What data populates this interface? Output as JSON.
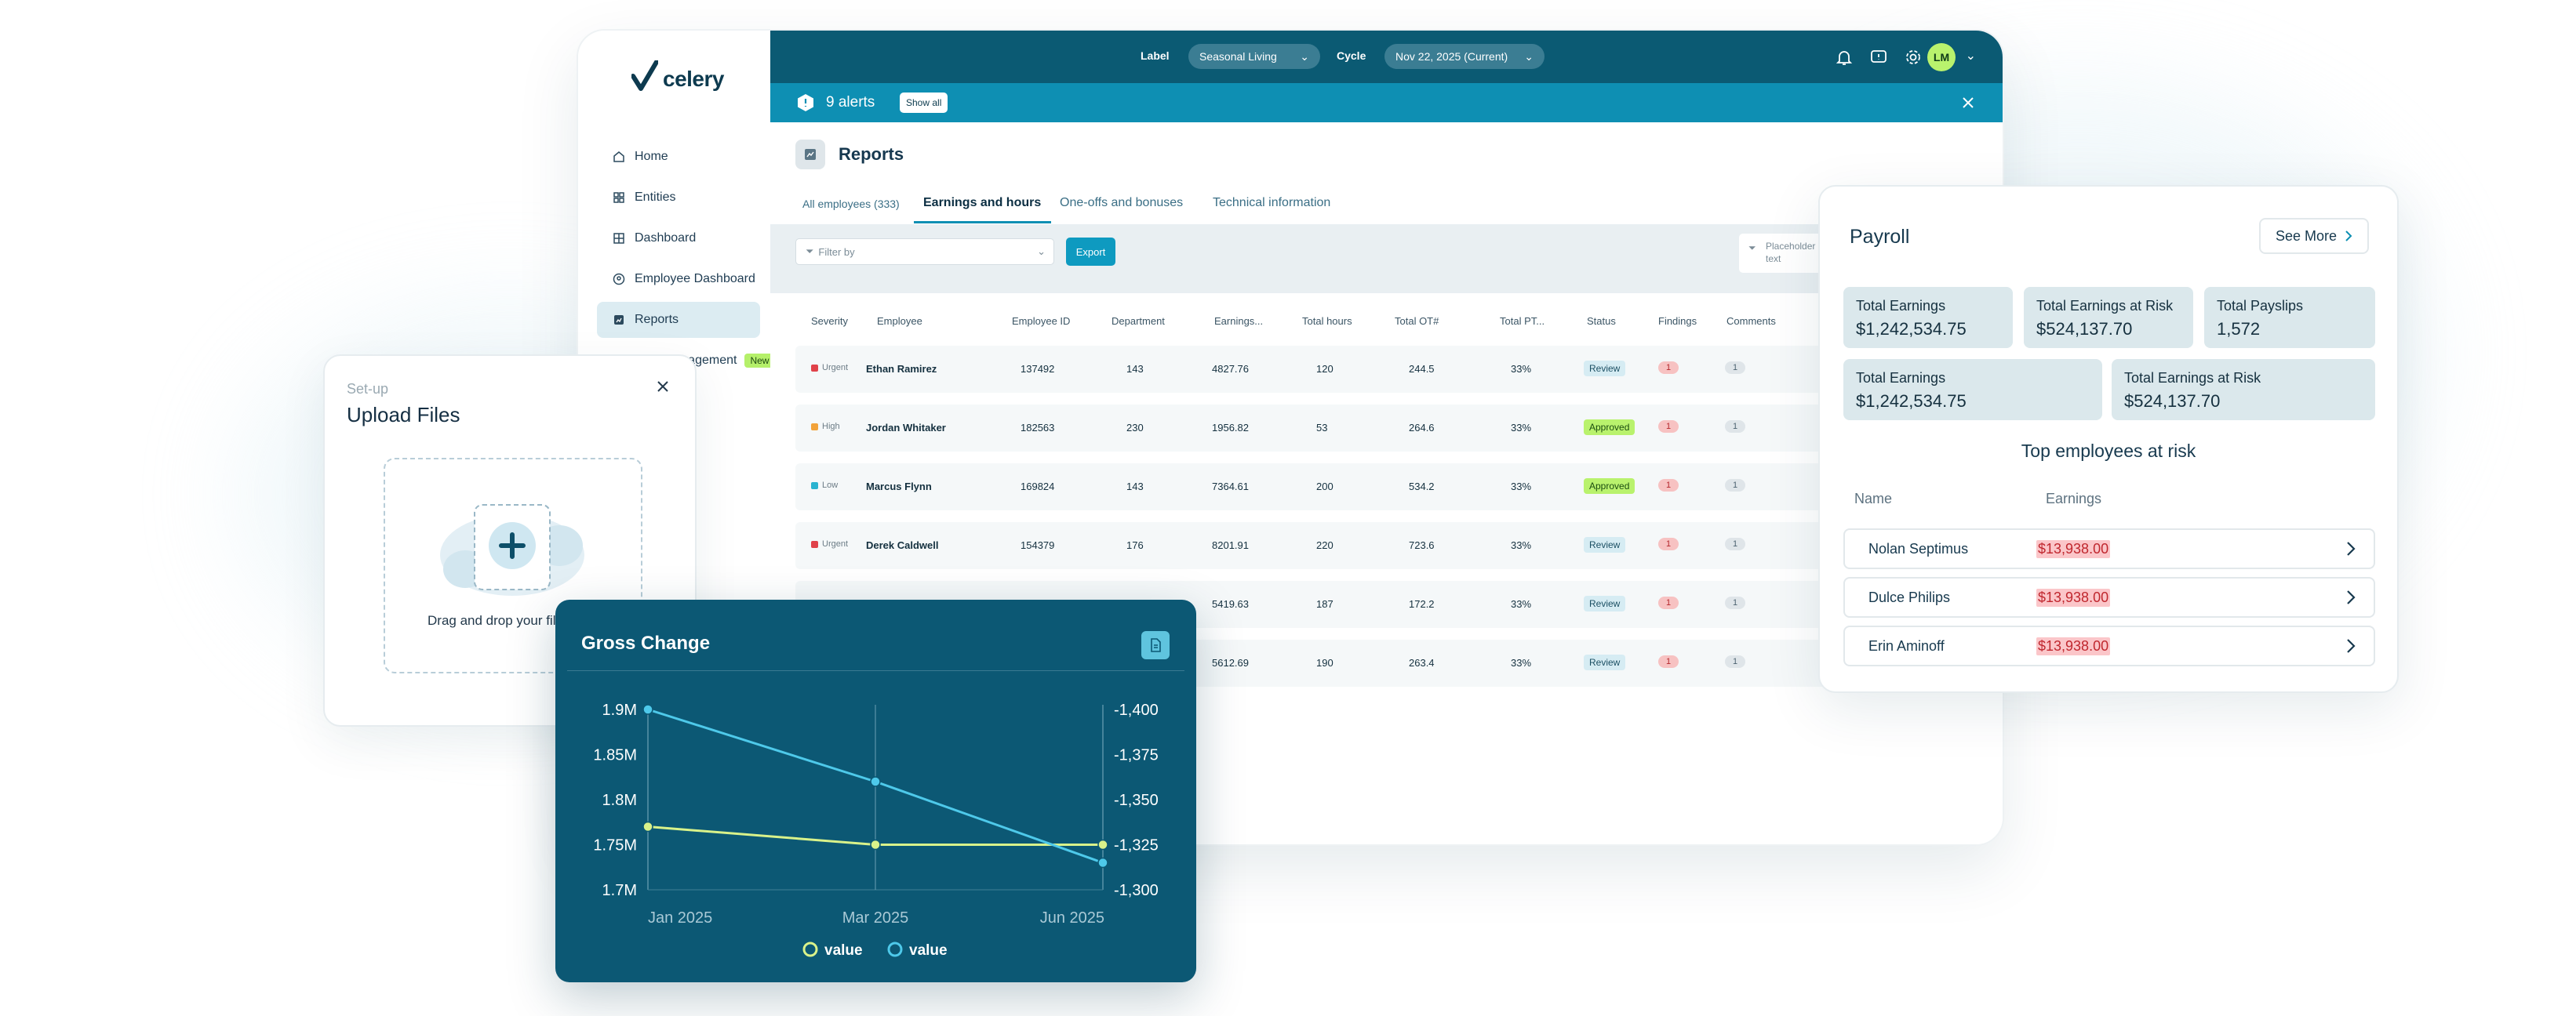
{
  "brand": {
    "name": "celery"
  },
  "sidebar": {
    "items": [
      {
        "label": "Home",
        "icon": "home-icon"
      },
      {
        "label": "Entities",
        "icon": "grid-icon"
      },
      {
        "label": "Dashboard",
        "icon": "dashboard-icon"
      },
      {
        "label": "Employee Dashboard",
        "icon": "user-circle-icon"
      },
      {
        "label": "Reports",
        "icon": "reports-icon",
        "active": true
      },
      {
        "label": "PTO Management",
        "icon": "clock-icon",
        "badge": "New"
      }
    ]
  },
  "topbar": {
    "label_caption": "Label",
    "label_value": "Seasonal Living",
    "cycle_caption": "Cycle",
    "cycle_value": "Nov 22, 2025 (Current)",
    "avatar_initials": "LM",
    "accent": "#0b5a73"
  },
  "alerts": {
    "count_text": "9 alerts",
    "show_all": "Show all",
    "color": "#0e8fb3"
  },
  "reports": {
    "title": "Reports",
    "tabs": [
      "All employees (333)",
      "Earnings and hours",
      "One-offs and bonuses",
      "Technical information"
    ],
    "active_tab": 1,
    "filter_placeholder": "Filter by",
    "export_label": "Export",
    "placeholder_box": "Placeholder text",
    "columns": [
      "Severity",
      "Employee",
      "Employee ID",
      "Department",
      "Earnings...",
      "Total hours",
      "Total OT#",
      "Total PT...",
      "Status",
      "Findings",
      "Comments"
    ],
    "rows": [
      {
        "severity": "Urgent",
        "sev_color": "#e0424a",
        "employee": "Ethan Ramirez",
        "id": "137492",
        "dept": "143",
        "earnings": "4827.76",
        "hours": "120",
        "ot": "244.5",
        "pt": "33%",
        "status": "Review",
        "findings": "1",
        "comments": "1"
      },
      {
        "severity": "High",
        "sev_color": "#f2a33a",
        "employee": "Jordan Whitaker",
        "id": "182563",
        "dept": "230",
        "earnings": "1956.82",
        "hours": "53",
        "ot": "264.6",
        "pt": "33%",
        "status": "Approved",
        "findings": "1",
        "comments": "1"
      },
      {
        "severity": "Low",
        "sev_color": "#2ab3d0",
        "employee": "Marcus Flynn",
        "id": "169824",
        "dept": "143",
        "earnings": "7364.61",
        "hours": "200",
        "ot": "534.2",
        "pt": "33%",
        "status": "Approved",
        "findings": "1",
        "comments": "1"
      },
      {
        "severity": "Urgent",
        "sev_color": "#e0424a",
        "employee": "Derek Caldwell",
        "id": "154379",
        "dept": "176",
        "earnings": "8201.91",
        "hours": "220",
        "ot": "723.6",
        "pt": "33%",
        "status": "Review",
        "findings": "1",
        "comments": "1"
      },
      {
        "severity": "",
        "sev_color": "",
        "employee": "",
        "id": "",
        "dept": "",
        "earnings": "5419.63",
        "hours": "187",
        "ot": "172.2",
        "pt": "33%",
        "status": "Review",
        "findings": "1",
        "comments": "1"
      },
      {
        "severity": "",
        "sev_color": "",
        "employee": "",
        "id": "",
        "dept": "",
        "earnings": "5612.69",
        "hours": "190",
        "ot": "263.4",
        "pt": "33%",
        "status": "Review",
        "findings": "1",
        "comments": "1"
      }
    ]
  },
  "upload": {
    "subtitle": "Set-up",
    "title": "Upload Files",
    "drop_text": "Drag and drop your files"
  },
  "gross_change": {
    "title": "Gross Change",
    "chart_data": {
      "type": "line",
      "title": "Gross Change",
      "categories": [
        "Jan 2025",
        "Mar 2025",
        "Jun 2025"
      ],
      "y_left": {
        "ticks": [
          "1.9M",
          "1.85M",
          "1.8M",
          "1.75M",
          "1.7M"
        ],
        "ylim": [
          1700000,
          1900000
        ]
      },
      "y_right": {
        "ticks": [
          "-1,400",
          "-1,375",
          "-1,350",
          "-1,325",
          "-1,300"
        ],
        "ylim": [
          -1300,
          -1400
        ]
      },
      "series": [
        {
          "name": "value",
          "color": "#d9f28a",
          "axis": "left",
          "values": [
            1770000,
            1750000,
            1750000
          ]
        },
        {
          "name": "value",
          "color": "#4ec9ea",
          "axis": "left",
          "values": [
            1900000,
            1820000,
            1730000
          ]
        }
      ],
      "grid": true,
      "legend": "bottom"
    }
  },
  "payroll": {
    "title": "Payroll",
    "see_more": "See More",
    "stats": [
      {
        "k": "Total Earnings",
        "v": "$1,242,534.75"
      },
      {
        "k": "Total Earnings at Risk",
        "v": "$524,137.70"
      },
      {
        "k": "Total Payslips",
        "v": "1,572"
      },
      {
        "k": "Total Earnings",
        "v": "$1,242,534.75"
      },
      {
        "k": "Total Earnings at Risk",
        "v": "$524,137.70"
      }
    ],
    "top_title": "Top employees at risk",
    "col_name": "Name",
    "col_earnings": "Earnings",
    "employees": [
      {
        "name": "Nolan Septimus",
        "earnings": "$13,938.00"
      },
      {
        "name": "Dulce Philips",
        "earnings": "$13,938.00"
      },
      {
        "name": "Erin Aminoff",
        "earnings": "$13,938.00"
      }
    ]
  }
}
